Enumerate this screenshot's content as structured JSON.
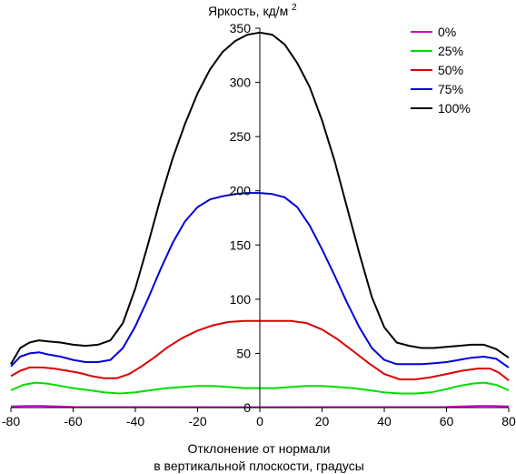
{
  "chart_data": {
    "type": "line",
    "title": "Яркость, кд/м",
    "title_sup": "2",
    "xlabel_line1": "Отклонение от нормали",
    "xlabel_line2": "в вертикальной плоскости, градусы",
    "xlim": [
      -80,
      80
    ],
    "ylim": [
      0,
      350
    ],
    "x_ticks": [
      -80,
      -60,
      -40,
      -20,
      0,
      20,
      40,
      60,
      80
    ],
    "y_ticks": [
      0,
      50,
      100,
      150,
      200,
      250,
      300,
      350
    ],
    "grid": false,
    "legend_position": "top-right",
    "series": [
      {
        "name": "0%",
        "color": "#cc00cc",
        "x": [
          -80,
          -75,
          -70,
          -65,
          -60,
          0,
          60,
          65,
          70,
          75,
          80
        ],
        "y": [
          1,
          1.5,
          1.5,
          1,
          0.5,
          0.3,
          0.5,
          1,
          1.5,
          1.5,
          1
        ]
      },
      {
        "name": "25%",
        "color": "#00dd00",
        "x": [
          -80,
          -76,
          -72,
          -68,
          -64,
          -60,
          -55,
          -50,
          -45,
          -40,
          -35,
          -30,
          -25,
          -20,
          -15,
          -10,
          -5,
          0,
          5,
          10,
          15,
          20,
          25,
          30,
          35,
          40,
          45,
          50,
          55,
          60,
          64,
          68,
          72,
          76,
          80
        ],
        "y": [
          16,
          21,
          23,
          22,
          20,
          18,
          16,
          14,
          13,
          14,
          16,
          18,
          19,
          20,
          20,
          19,
          18,
          18,
          18,
          19,
          20,
          20,
          19,
          18,
          16,
          14,
          13,
          13,
          14,
          17,
          20,
          22,
          23,
          21,
          16
        ]
      },
      {
        "name": "50%",
        "color": "#dd0000",
        "x": [
          -80,
          -77,
          -74,
          -70,
          -66,
          -62,
          -58,
          -54,
          -50,
          -46,
          -42,
          -38,
          -34,
          -30,
          -25,
          -20,
          -15,
          -10,
          -5,
          0,
          5,
          10,
          15,
          20,
          25,
          30,
          35,
          40,
          45,
          50,
          55,
          60,
          65,
          70,
          74,
          77,
          80
        ],
        "y": [
          29,
          34,
          37,
          37,
          36,
          34,
          32,
          29,
          27,
          27,
          31,
          38,
          46,
          55,
          64,
          71,
          76,
          79,
          80,
          80,
          80,
          80,
          78,
          72,
          63,
          52,
          41,
          31,
          26,
          26,
          28,
          31,
          34,
          36,
          36,
          32,
          25
        ]
      },
      {
        "name": "75%",
        "color": "#0000dd",
        "x": [
          -80,
          -77,
          -74,
          -71,
          -68,
          -64,
          -60,
          -56,
          -52,
          -48,
          -44,
          -40,
          -36,
          -32,
          -28,
          -24,
          -20,
          -16,
          -12,
          -8,
          -4,
          0,
          4,
          8,
          12,
          16,
          20,
          24,
          28,
          32,
          36,
          40,
          44,
          48,
          52,
          56,
          60,
          64,
          68,
          72,
          76,
          80
        ],
        "y": [
          38,
          47,
          50,
          51,
          49,
          47,
          44,
          42,
          42,
          44,
          55,
          75,
          100,
          127,
          152,
          172,
          185,
          192,
          195,
          197,
          198,
          198,
          197,
          194,
          185,
          168,
          146,
          122,
          97,
          74,
          55,
          44,
          40,
          40,
          40,
          41,
          42,
          44,
          46,
          47,
          45,
          37
        ]
      },
      {
        "name": "100%",
        "color": "#000000",
        "x": [
          -80,
          -77,
          -74,
          -71,
          -68,
          -64,
          -60,
          -56,
          -52,
          -48,
          -44,
          -40,
          -36,
          -32,
          -28,
          -24,
          -20,
          -16,
          -12,
          -8,
          -4,
          0,
          4,
          8,
          12,
          16,
          20,
          24,
          28,
          32,
          36,
          40,
          44,
          48,
          52,
          56,
          60,
          64,
          68,
          72,
          76,
          80
        ],
        "y": [
          40,
          55,
          60,
          62,
          61,
          60,
          58,
          57,
          58,
          62,
          78,
          110,
          150,
          192,
          230,
          262,
          290,
          312,
          328,
          338,
          344,
          346,
          344,
          335,
          318,
          296,
          265,
          228,
          185,
          142,
          102,
          74,
          60,
          57,
          55,
          55,
          56,
          57,
          58,
          58,
          54,
          46
        ]
      }
    ]
  }
}
